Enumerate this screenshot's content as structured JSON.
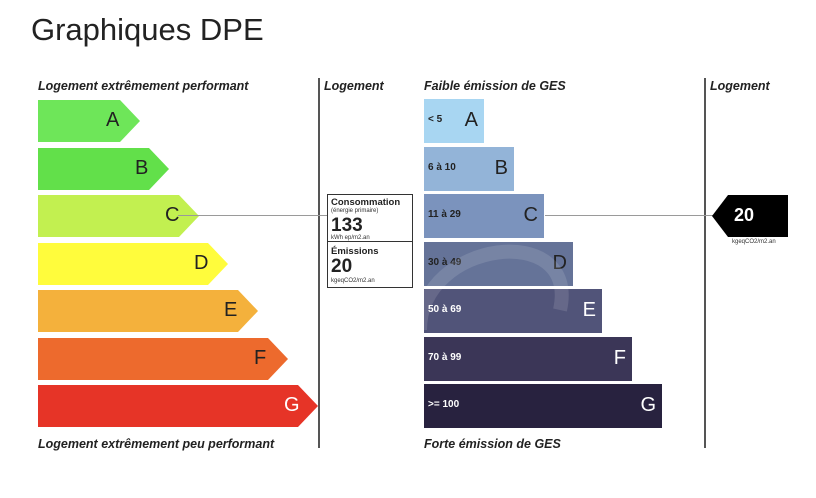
{
  "page_title": "Graphiques DPE",
  "dpe": {
    "top_label": "Logement extrêmement performant",
    "bottom_label": "Logement extrêmement peu performant",
    "column_label": "Logement",
    "bars": [
      {
        "letter": "A",
        "color": "#6ee659"
      },
      {
        "letter": "B",
        "color": "#62e04a"
      },
      {
        "letter": "C",
        "color": "#c2f050"
      },
      {
        "letter": "D",
        "color": "#fffc3c"
      },
      {
        "letter": "E",
        "color": "#f4b13c"
      },
      {
        "letter": "F",
        "color": "#ed6a2d"
      },
      {
        "letter": "G",
        "color": "#e63427"
      }
    ],
    "current_class": "C",
    "consumption": {
      "title": "Consommation",
      "subtitle": "(énergie primaire)",
      "value": "133",
      "unit": "kWh ep/m2.an"
    },
    "emissions": {
      "title": "Émissions",
      "value": "20",
      "unit": "kgeqCO2/m2.an"
    }
  },
  "ges": {
    "top_label": "Faible émission de GES",
    "bottom_label": "Forte émission de GES",
    "column_label": "Logement",
    "bars": [
      {
        "range": "< 5",
        "letter": "A",
        "color": "#a8d6f2",
        "text_color": "#222222"
      },
      {
        "range": "6 à 10",
        "letter": "B",
        "color": "#93b4d8",
        "text_color": "#222222"
      },
      {
        "range": "11 à 29",
        "letter": "C",
        "color": "#7b93bd",
        "text_color": "#222222"
      },
      {
        "range": "30 à 49",
        "letter": "D",
        "color": "#657398",
        "text_color": "#222222"
      },
      {
        "range": "50 à 69",
        "letter": "E",
        "color": "#515479",
        "text_color": "#ffffff"
      },
      {
        "range": "70 à 99",
        "letter": "F",
        "color": "#3b3657",
        "text_color": "#ffffff"
      },
      {
        "range": ">= 100",
        "letter": "G",
        "color": "#28223f",
        "text_color": "#ffffff"
      }
    ],
    "current_class": "C",
    "value": "20",
    "unit": "kgeqCO2/m2.an"
  }
}
